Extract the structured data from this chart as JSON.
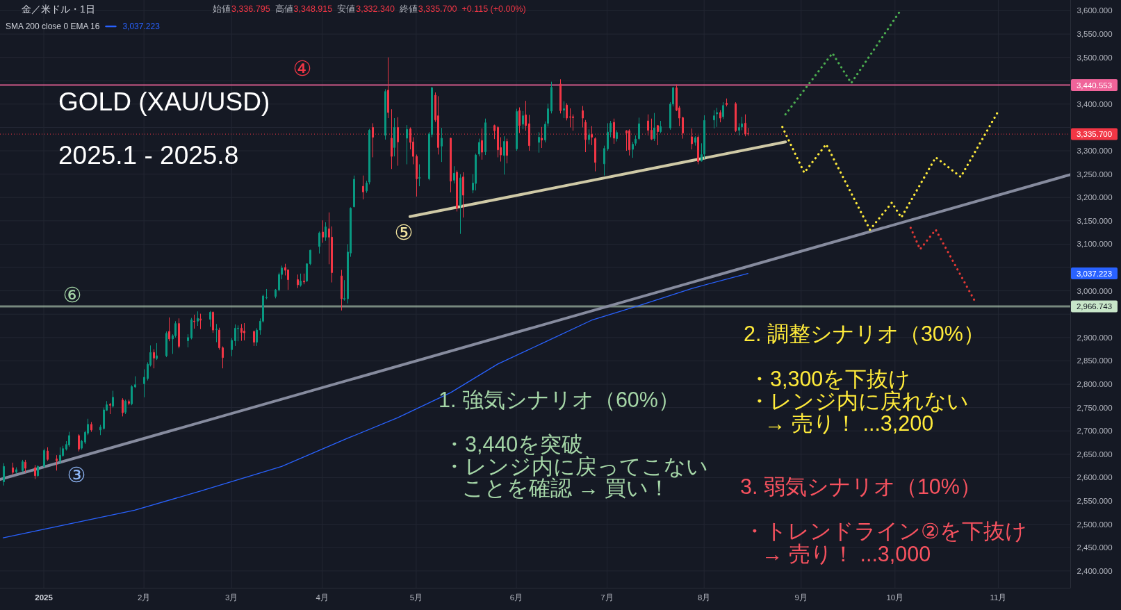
{
  "chart_data": {
    "type": "candlestick",
    "title": "GOLD (XAU/USD)",
    "subtitle": "2025.1 - 2025.8",
    "x": [
      "2024-12-20",
      "2024-12-23",
      "2024-12-24",
      "2024-12-26",
      "2024-12-27",
      "2024-12-30",
      "2024-12-31",
      "2025-01-02",
      "2025-01-03",
      "2025-01-06",
      "2025-01-07",
      "2025-01-08",
      "2025-01-09",
      "2025-01-10",
      "2025-01-13",
      "2025-01-14",
      "2025-01-15",
      "2025-01-16",
      "2025-01-17",
      "2025-01-20",
      "2025-01-21",
      "2025-01-22",
      "2025-01-23",
      "2025-01-24",
      "2025-01-27",
      "2025-01-28",
      "2025-01-29",
      "2025-01-30",
      "2025-01-31",
      "2025-02-03",
      "2025-02-04",
      "2025-02-05",
      "2025-02-06",
      "2025-02-07",
      "2025-02-10",
      "2025-02-11",
      "2025-02-12",
      "2025-02-13",
      "2025-02-14",
      "2025-02-17",
      "2025-02-18",
      "2025-02-19",
      "2025-02-20",
      "2025-02-21",
      "2025-02-24",
      "2025-02-25",
      "2025-02-26",
      "2025-02-27",
      "2025-02-28",
      "2025-03-03",
      "2025-03-04",
      "2025-03-05",
      "2025-03-06",
      "2025-03-07",
      "2025-03-10",
      "2025-03-11",
      "2025-03-12",
      "2025-03-13",
      "2025-03-14",
      "2025-03-17",
      "2025-03-18",
      "2025-03-19",
      "2025-03-20",
      "2025-03-21",
      "2025-03-24",
      "2025-03-25",
      "2025-03-26",
      "2025-03-27",
      "2025-03-28",
      "2025-03-31",
      "2025-04-01",
      "2025-04-02",
      "2025-04-03",
      "2025-04-04",
      "2025-04-07",
      "2025-04-08",
      "2025-04-09",
      "2025-04-10",
      "2025-04-11",
      "2025-04-14",
      "2025-04-15",
      "2025-04-16",
      "2025-04-17",
      "2025-04-21",
      "2025-04-22",
      "2025-04-23",
      "2025-04-24",
      "2025-04-25",
      "2025-04-28",
      "2025-04-29",
      "2025-04-30",
      "2025-05-01",
      "2025-05-02",
      "2025-05-05",
      "2025-05-06",
      "2025-05-07",
      "2025-05-08",
      "2025-05-09",
      "2025-05-12",
      "2025-05-13",
      "2025-05-14",
      "2025-05-15",
      "2025-05-16",
      "2025-05-19",
      "2025-05-20",
      "2025-05-21",
      "2025-05-22",
      "2025-05-23",
      "2025-05-26",
      "2025-05-27",
      "2025-05-28",
      "2025-05-29",
      "2025-05-30",
      "2025-06-02",
      "2025-06-03",
      "2025-06-04",
      "2025-06-05",
      "2025-06-06",
      "2025-06-09",
      "2025-06-10",
      "2025-06-11",
      "2025-06-12",
      "2025-06-13",
      "2025-06-16",
      "2025-06-17",
      "2025-06-18",
      "2025-06-19",
      "2025-06-20",
      "2025-06-23",
      "2025-06-24",
      "2025-06-25",
      "2025-06-26",
      "2025-06-27",
      "2025-06-30",
      "2025-07-01",
      "2025-07-02",
      "2025-07-03",
      "2025-07-04",
      "2025-07-07",
      "2025-07-08",
      "2025-07-09",
      "2025-07-10",
      "2025-07-11",
      "2025-07-14",
      "2025-07-15",
      "2025-07-16",
      "2025-07-17",
      "2025-07-18",
      "2025-07-21",
      "2025-07-22",
      "2025-07-23",
      "2025-07-24",
      "2025-07-25",
      "2025-07-28",
      "2025-07-29",
      "2025-07-30",
      "2025-07-31",
      "2025-08-01",
      "2025-08-04",
      "2025-08-05",
      "2025-08-06",
      "2025-08-07",
      "2025-08-08",
      "2025-08-11",
      "2025-08-12",
      "2025-08-13",
      "2025-08-14",
      "2025-08-15"
    ],
    "ohlc": [
      [
        2591,
        2631,
        2583,
        2624
      ],
      [
        2621,
        2632,
        2606,
        2611
      ],
      [
        2612,
        2622,
        2609,
        2617
      ],
      [
        2615,
        2638,
        2612,
        2634
      ],
      [
        2633,
        2638,
        2611,
        2620
      ],
      [
        2621,
        2627,
        2597,
        2604
      ],
      [
        2604,
        2626,
        2602,
        2624
      ],
      [
        2624,
        2662,
        2621,
        2658
      ],
      [
        2657,
        2665,
        2636,
        2639
      ],
      [
        2640,
        2648,
        2615,
        2636
      ],
      [
        2636,
        2665,
        2629,
        2648
      ],
      [
        2647,
        2668,
        2645,
        2662
      ],
      [
        2661,
        2678,
        2658,
        2671
      ],
      [
        2670,
        2698,
        2666,
        2690
      ],
      [
        2690,
        2693,
        2656,
        2661
      ],
      [
        2663,
        2681,
        2660,
        2678
      ],
      [
        2676,
        2700,
        2672,
        2697
      ],
      [
        2695,
        2726,
        2691,
        2714
      ],
      [
        2714,
        2719,
        2698,
        2702
      ],
      [
        2702,
        2713,
        2691,
        2708
      ],
      [
        2705,
        2750,
        2703,
        2745
      ],
      [
        2744,
        2764,
        2743,
        2756
      ],
      [
        2757,
        2760,
        2736,
        2755
      ],
      [
        2753,
        2786,
        2750,
        2772
      ],
      [
        2766,
        2770,
        2731,
        2739
      ],
      [
        2740,
        2767,
        2736,
        2764
      ],
      [
        2763,
        2767,
        2755,
        2759
      ],
      [
        2758,
        2798,
        2755,
        2795
      ],
      [
        2794,
        2817,
        2792,
        2799
      ],
      [
        2801,
        2832,
        2772,
        2815
      ],
      [
        2812,
        2847,
        2808,
        2843
      ],
      [
        2841,
        2883,
        2838,
        2868
      ],
      [
        2868,
        2875,
        2834,
        2856
      ],
      [
        2855,
        2888,
        2852,
        2861
      ],
      [
        2861,
        2913,
        2858,
        2909
      ],
      [
        2913,
        2943,
        2892,
        2897
      ],
      [
        2897,
        2907,
        2865,
        2904
      ],
      [
        2904,
        2935,
        2900,
        2930
      ],
      [
        2930,
        2941,
        2877,
        2881
      ],
      [
        2893,
        2907,
        2879,
        2900
      ],
      [
        2899,
        2942,
        2896,
        2938
      ],
      [
        2935,
        2949,
        2919,
        2934
      ],
      [
        2935,
        2956,
        2925,
        2941
      ],
      [
        2940,
        2951,
        2918,
        2937
      ],
      [
        2939,
        2957,
        2923,
        2954
      ],
      [
        2954,
        2956,
        2910,
        2916
      ],
      [
        2917,
        2929,
        2890,
        2918
      ],
      [
        2916,
        2921,
        2874,
        2878
      ],
      [
        2878,
        2881,
        2834,
        2857
      ],
      [
        2874,
        2899,
        2860,
        2894
      ],
      [
        2893,
        2928,
        2882,
        2920
      ],
      [
        2919,
        2926,
        2892,
        2920
      ],
      [
        2920,
        2929,
        2893,
        2911
      ],
      [
        2914,
        2931,
        2894,
        2910
      ],
      [
        2913,
        2915,
        2882,
        2890
      ],
      [
        2890,
        2920,
        2882,
        2916
      ],
      [
        2916,
        2941,
        2906,
        2935
      ],
      [
        2935,
        2992,
        2932,
        2989
      ],
      [
        2985,
        3004,
        2982,
        2986
      ],
      [
        2988,
        3004,
        2984,
        3002
      ],
      [
        3002,
        3039,
        2999,
        3035
      ],
      [
        3035,
        3054,
        3025,
        3049
      ],
      [
        3050,
        3058,
        3033,
        3044
      ],
      [
        3045,
        3045,
        3002,
        3024
      ],
      [
        3024,
        3035,
        3006,
        3013
      ],
      [
        3012,
        3037,
        3009,
        3021
      ],
      [
        3021,
        3037,
        3014,
        3019
      ],
      [
        3021,
        3059,
        3019,
        3058
      ],
      [
        3058,
        3088,
        3055,
        3087
      ],
      [
        3095,
        3127,
        3080,
        3124
      ],
      [
        3126,
        3151,
        3103,
        3115
      ],
      [
        3115,
        3147,
        3107,
        3137
      ],
      [
        3133,
        3168,
        3057,
        3115
      ],
      [
        3115,
        3138,
        3018,
        3039
      ],
      [
        3032,
        3045,
        2958,
        2983
      ],
      [
        2982,
        3023,
        2979,
        2984
      ],
      [
        2983,
        3100,
        2973,
        3083
      ],
      [
        3081,
        3179,
        3073,
        3177
      ],
      [
        3180,
        3247,
        3179,
        3239
      ],
      [
        3224,
        3247,
        3196,
        3212
      ],
      [
        3214,
        3236,
        3210,
        3231
      ],
      [
        3233,
        3347,
        3228,
        3344
      ],
      [
        3350,
        3359,
        3286,
        3329
      ],
      [
        3333,
        3432,
        3324,
        3427
      ],
      [
        3430,
        3500,
        3370,
        3382
      ],
      [
        3327,
        3389,
        3261,
        3288
      ],
      [
        3307,
        3370,
        3288,
        3350
      ],
      [
        3350,
        3372,
        3268,
        3319
      ],
      [
        3327,
        3355,
        3271,
        3346
      ],
      [
        3347,
        3350,
        3303,
        3318
      ],
      [
        3319,
        3329,
        3271,
        3288
      ],
      [
        3288,
        3292,
        3202,
        3240
      ],
      [
        3241,
        3271,
        3224,
        3243
      ],
      [
        3240,
        3340,
        3237,
        3336
      ],
      [
        3335,
        3437,
        3329,
        3435
      ],
      [
        3419,
        3425,
        3362,
        3366
      ],
      [
        3375,
        3417,
        3292,
        3307
      ],
      [
        3310,
        3349,
        3276,
        3327
      ],
      [
        3327,
        3328,
        3211,
        3235
      ],
      [
        3237,
        3267,
        3230,
        3252
      ],
      [
        3254,
        3258,
        3170,
        3177
      ],
      [
        3182,
        3250,
        3122,
        3242
      ],
      [
        3244,
        3254,
        3157,
        3205
      ],
      [
        3216,
        3250,
        3209,
        3231
      ],
      [
        3230,
        3294,
        3215,
        3291
      ],
      [
        3293,
        3326,
        3288,
        3318
      ],
      [
        3322,
        3348,
        3281,
        3297
      ],
      [
        3298,
        3369,
        3291,
        3360
      ],
      [
        3354,
        3356,
        3325,
        3343
      ],
      [
        3350,
        3353,
        3286,
        3302
      ],
      [
        3307,
        3329,
        3277,
        3291
      ],
      [
        3290,
        3331,
        3249,
        3320
      ],
      [
        3320,
        3326,
        3273,
        3290
      ],
      [
        3304,
        3390,
        3300,
        3384
      ],
      [
        3386,
        3393,
        3338,
        3354
      ],
      [
        3357,
        3385,
        3346,
        3375
      ],
      [
        3377,
        3407,
        3343,
        3354
      ],
      [
        3358,
        3377,
        3300,
        3311
      ],
      [
        3318,
        3340,
        3296,
        3329
      ],
      [
        3327,
        3351,
        3306,
        3323
      ],
      [
        3323,
        3363,
        3318,
        3357
      ],
      [
        3359,
        3401,
        3352,
        3390
      ],
      [
        3385,
        3448,
        3380,
        3436
      ],
      [
        3443,
        3453,
        3380,
        3386
      ],
      [
        3387,
        3406,
        3370,
        3390
      ],
      [
        3398,
        3402,
        3365,
        3370
      ],
      [
        3373,
        3391,
        3350,
        3372
      ],
      [
        3373,
        3378,
        3343,
        3371
      ],
      [
        3386,
        3396,
        3350,
        3370
      ],
      [
        3361,
        3366,
        3297,
        3324
      ],
      [
        3324,
        3346,
        3314,
        3334
      ],
      [
        3335,
        3353,
        3312,
        3329
      ],
      [
        3326,
        3329,
        3256,
        3275
      ],
      [
        3272,
        3311,
        3247,
        3305
      ],
      [
        3304,
        3359,
        3300,
        3340
      ],
      [
        3340,
        3364,
        3329,
        3359
      ],
      [
        3361,
        3369,
        3315,
        3327
      ],
      [
        3326,
        3344,
        3320,
        3339
      ],
      [
        3343,
        3344,
        3300,
        3338
      ],
      [
        3343,
        3346,
        3290,
        3302
      ],
      [
        3303,
        3319,
        3285,
        3314
      ],
      [
        3316,
        3333,
        3311,
        3325
      ],
      [
        3326,
        3371,
        3323,
        3358
      ],
      [
        3364,
        3378,
        3333,
        3344
      ],
      [
        3344,
        3369,
        3323,
        3325
      ],
      [
        3326,
        3381,
        3321,
        3349
      ],
      [
        3354,
        3355,
        3312,
        3341
      ],
      [
        3341,
        3364,
        3338,
        3352
      ],
      [
        3349,
        3404,
        3345,
        3400
      ],
      [
        3400,
        3437,
        3395,
        3435
      ],
      [
        3435,
        3442,
        3385,
        3387
      ],
      [
        3392,
        3396,
        3353,
        3370
      ],
      [
        3371,
        3373,
        3326,
        3338
      ],
      [
        3330,
        3348,
        3303,
        3315
      ],
      [
        3318,
        3331,
        3311,
        3328
      ],
      [
        3329,
        3333,
        3271,
        3277
      ],
      [
        3278,
        3316,
        3277,
        3292
      ],
      [
        3293,
        3376,
        3283,
        3365
      ],
      [
        3366,
        3387,
        3348,
        3375
      ],
      [
        3379,
        3392,
        3351,
        3382
      ],
      [
        3382,
        3387,
        3361,
        3370
      ],
      [
        3373,
        3404,
        3368,
        3397
      ],
      [
        3402,
        3412,
        3395,
        3399
      ],
      [
        3401,
        3404,
        3340,
        3343
      ],
      [
        3344,
        3359,
        3333,
        3350
      ],
      [
        3351,
        3373,
        3344,
        3358
      ],
      [
        3359,
        3378,
        3331,
        3335.585
      ],
      [
        3336.795,
        3348.915,
        3332.34,
        3335.7
      ]
    ],
    "series": [
      {
        "name": "SMA 200 close 0 EMA 16",
        "type": "line",
        "color": "#2962ff",
        "x": [
          "2024-12-20",
          "2025-01-31",
          "2025-02-21",
          "2025-03-19",
          "2025-04-09",
          "2025-04-25",
          "2025-05-12",
          "2025-05-27",
          "2025-06-11",
          "2025-06-26",
          "2025-07-11",
          "2025-07-28",
          "2025-08-15"
        ],
        "values": [
          2471,
          2530,
          2571,
          2624,
          2684,
          2728,
          2782,
          2843,
          2890,
          2937,
          2968,
          3005,
          3037.223
        ]
      },
      {
        "type": "line",
        "color": "#868b9e",
        "x": [
          "2024-12-19",
          "2025-11-26"
        ],
        "values": [
          2596,
          3249
        ]
      },
      {
        "type": "line",
        "color": "#cfc9a6",
        "x": [
          "2025-04-29",
          "2025-08-27"
        ],
        "values": [
          3159,
          3319
        ]
      },
      {
        "type": "line",
        "color": "#4caf50",
        "line_style": "dotted",
        "x": [
          "2025-08-27",
          "2025-09-11",
          "2025-09-17",
          "2025-10-03"
        ],
        "values": [
          3378,
          3509,
          3445,
          3603
        ]
      },
      {
        "type": "line",
        "color": "#ffeb3b",
        "line_style": "dotted",
        "x": [
          "2025-08-26",
          "2025-09-02",
          "2025-09-09",
          "2025-09-23",
          "2025-09-30",
          "2025-10-03",
          "2025-10-14",
          "2025-10-22",
          "2025-11-03"
        ],
        "values": [
          3351,
          3253,
          3314,
          3131,
          3189,
          3157,
          3286,
          3244,
          3385
        ]
      },
      {
        "type": "line",
        "color": "#e53935",
        "line_style": "dotted",
        "x": [
          "2025-10-06",
          "2025-10-09",
          "2025-10-14",
          "2025-10-27"
        ],
        "values": [
          3135,
          3089,
          3131,
          2972
        ]
      }
    ],
    "ref_lines": [
      {
        "axis": "y",
        "value": 3440.553,
        "label": "3,440.553",
        "color": "#f0649a"
      },
      {
        "axis": "y",
        "value": 3335.7,
        "label": "3,335.700",
        "color": "#f23645",
        "line_style": "dotted"
      },
      {
        "axis": "y",
        "value": 2966.743,
        "label": "2,966.743",
        "color": "#c8e6c9"
      }
    ],
    "xlim": [
      "2024-12-19",
      "2025-11-26"
    ],
    "xticks": [
      {
        "value": "2025-01-02",
        "label": "2025"
      },
      {
        "value": "2025-02-03",
        "label": "2月"
      },
      {
        "value": "2025-03-03",
        "label": "3月"
      },
      {
        "value": "2025-04-01",
        "label": "4月"
      },
      {
        "value": "2025-05-01",
        "label": "5月"
      },
      {
        "value": "2025-06-02",
        "label": "6月"
      },
      {
        "value": "2025-07-01",
        "label": "7月"
      },
      {
        "value": "2025-08-01",
        "label": "8月"
      },
      {
        "value": "2025-09-01",
        "label": "9月"
      },
      {
        "value": "2025-10-01",
        "label": "10月"
      },
      {
        "value": "2025-11-03",
        "label": "11月"
      }
    ],
    "ylim": [
      2364,
      3623
    ],
    "yticks": [
      {
        "value": 2400,
        "label": "2,400.000"
      },
      {
        "value": 2450,
        "label": "2,450.000"
      },
      {
        "value": 2500,
        "label": "2,500.000"
      },
      {
        "value": 2550,
        "label": "2,550.000"
      },
      {
        "value": 2600,
        "label": "2,600.000"
      },
      {
        "value": 2650,
        "label": "2,650.000"
      },
      {
        "value": 2700,
        "label": "2,700.000"
      },
      {
        "value": 2750,
        "label": "2,750.000"
      },
      {
        "value": 2800,
        "label": "2,800.000"
      },
      {
        "value": 2850,
        "label": "2,850.000"
      },
      {
        "value": 2900,
        "label": "2,900.000"
      },
      {
        "value": 2950,
        "label": null
      },
      {
        "value": 3000,
        "label": "3,000.000"
      },
      {
        "value": 3050,
        "label": null
      },
      {
        "value": 3100,
        "label": "3,100.000"
      },
      {
        "value": 3150,
        "label": "3,150.000"
      },
      {
        "value": 3200,
        "label": "3,200.000"
      },
      {
        "value": 3250,
        "label": "3,250.000"
      },
      {
        "value": 3300,
        "label": "3,300.000"
      },
      {
        "value": 3350,
        "label": null
      },
      {
        "value": 3400,
        "label": "3,400.000"
      },
      {
        "value": 3450,
        "label": null
      },
      {
        "value": 3500,
        "label": "3,500.000"
      },
      {
        "value": 3550,
        "label": "3,550.000"
      },
      {
        "value": 3600,
        "label": "3,600.000"
      }
    ],
    "grid": true,
    "legend": "top left",
    "annotations": [
      "金／米ドル・1日",
      "始値",
      "3,336.795",
      "高値",
      "3,348.915",
      "安値",
      "3,332.340",
      "終値",
      "3,335.700",
      "+0.115 (+0.00%)",
      "3,037.223",
      "④",
      "⑤",
      "⑥",
      "③",
      "1. 強気シナリオ（60%）",
      "・3,440を突破",
      "・レンジ内に戻ってこない",
      "ことを確認 → 買い！",
      "2. 調整シナリオ（30%）",
      "・3,300を下抜け",
      "・レンジ内に戻れない",
      "→ 売り！ ...3,200",
      "3. 弱気シナリオ（10%）",
      "・トレンドライン②を下抜け",
      "→ 売り！ ...3,000",
      "3,037.223"
    ]
  }
}
